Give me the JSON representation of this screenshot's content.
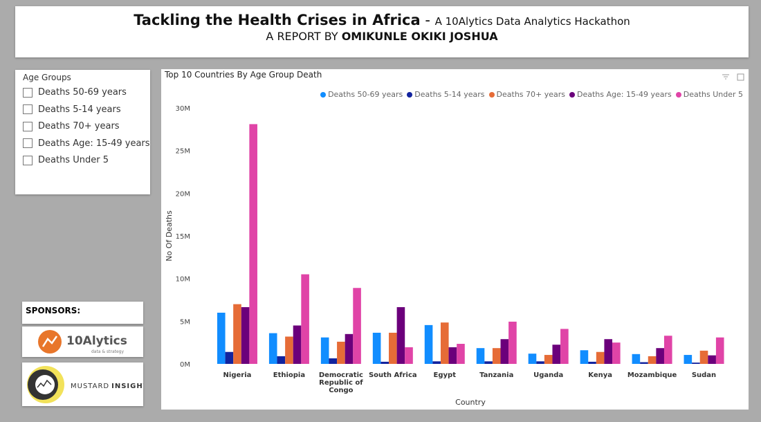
{
  "header": {
    "title": "Tackling the Health Crises in Africa",
    "separator": "-",
    "subtitle": "A 10Alytics Data Analytics Hackathon",
    "byline": "A REPORT BY",
    "author": "OMIKUNLE OKIKI JOSHUA"
  },
  "slicer": {
    "title": "Age Groups",
    "items": [
      "Deaths 50-69 years",
      "Deaths 5-14 years",
      "Deaths 70+ years",
      "Deaths Age: 15-49 years",
      "Deaths Under 5"
    ]
  },
  "sponsors": {
    "title": "SPONSORS:",
    "logos": [
      {
        "name": "10Alytics",
        "tagline": "data & strategy"
      },
      {
        "name": "MUSTARD",
        "suffix": "INSIGHTS"
      }
    ]
  },
  "chart_data": {
    "type": "bar",
    "title": "Top 10 Countries By Age Group Death",
    "x_label": "Country",
    "y_label": "No Of Deaths",
    "categories": [
      "Nigeria",
      "Ethiopia",
      "Democratic Republic of Congo",
      "South Africa",
      "Egypt",
      "Tanzania",
      "Uganda",
      "Kenya",
      "Mozambique",
      "Sudan"
    ],
    "series": [
      {
        "name": "Deaths 50-69 years",
        "color": "#118dff",
        "values": [
          6000000,
          3600000,
          3100000,
          3650000,
          4550000,
          1850000,
          1200000,
          1600000,
          1150000,
          1050000
        ]
      },
      {
        "name": "Deaths 5-14 years",
        "color": "#12239e",
        "values": [
          1400000,
          900000,
          650000,
          250000,
          300000,
          300000,
          300000,
          250000,
          200000,
          150000
        ]
      },
      {
        "name": "Deaths 70+ years",
        "color": "#e66c37",
        "values": [
          7000000,
          3200000,
          2600000,
          3650000,
          4850000,
          1850000,
          1050000,
          1400000,
          900000,
          1550000
        ]
      },
      {
        "name": "Deaths Age: 15-49 years",
        "color": "#6b007b",
        "values": [
          6650000,
          4500000,
          3500000,
          6650000,
          1950000,
          2900000,
          2250000,
          2900000,
          1850000,
          1000000
        ]
      },
      {
        "name": "Deaths Under 5",
        "color": "#e044a7",
        "values": [
          28100000,
          10500000,
          8900000,
          1950000,
          2350000,
          4950000,
          4100000,
          2500000,
          3300000,
          3100000
        ]
      }
    ],
    "ylim": [
      0,
      30000000
    ],
    "yticks": [
      {
        "value": 0,
        "label": "0M"
      },
      {
        "value": 5000000,
        "label": "5M"
      },
      {
        "value": 10000000,
        "label": "10M"
      },
      {
        "value": 15000000,
        "label": "15M"
      },
      {
        "value": 20000000,
        "label": "20M"
      },
      {
        "value": 25000000,
        "label": "25M"
      },
      {
        "value": 30000000,
        "label": "30M"
      }
    ],
    "grid": false,
    "legend": "top-right"
  }
}
